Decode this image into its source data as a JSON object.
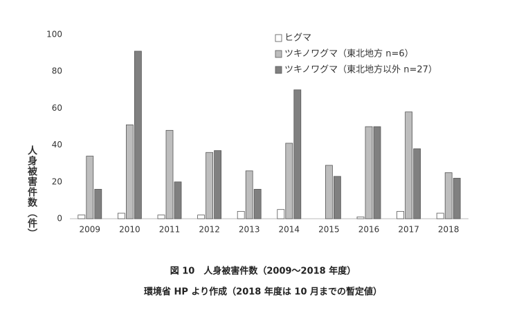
{
  "chart_data": {
    "type": "bar",
    "y_label": "人身被害件数（件）",
    "categories": [
      "2009",
      "2010",
      "2011",
      "2012",
      "2013",
      "2014",
      "2015",
      "2016",
      "2017",
      "2018"
    ],
    "series": [
      {
        "name": "ヒグマ",
        "color": "#ffffff",
        "values": [
          2,
          3,
          2,
          2,
          4,
          5,
          0,
          1,
          4,
          3
        ]
      },
      {
        "name": "ツキノワグマ（東北地方 n=6）",
        "color": "#bdbdbd",
        "values": [
          34,
          51,
          48,
          36,
          26,
          41,
          29,
          50,
          58,
          25
        ]
      },
      {
        "name": "ツキノワグマ（東北地方以外 n=27）",
        "color": "#808080",
        "values": [
          16,
          91,
          20,
          37,
          16,
          70,
          23,
          50,
          38,
          22
        ]
      }
    ],
    "ylim": [
      0,
      100
    ],
    "yticks": [
      0,
      20,
      40,
      60,
      80,
      100
    ],
    "grid": false,
    "caption": "図 10　人身被害件数（2009～2018 年度）",
    "source": "環境省 HP より作成（2018 年度は 10 月までの暫定値）"
  }
}
